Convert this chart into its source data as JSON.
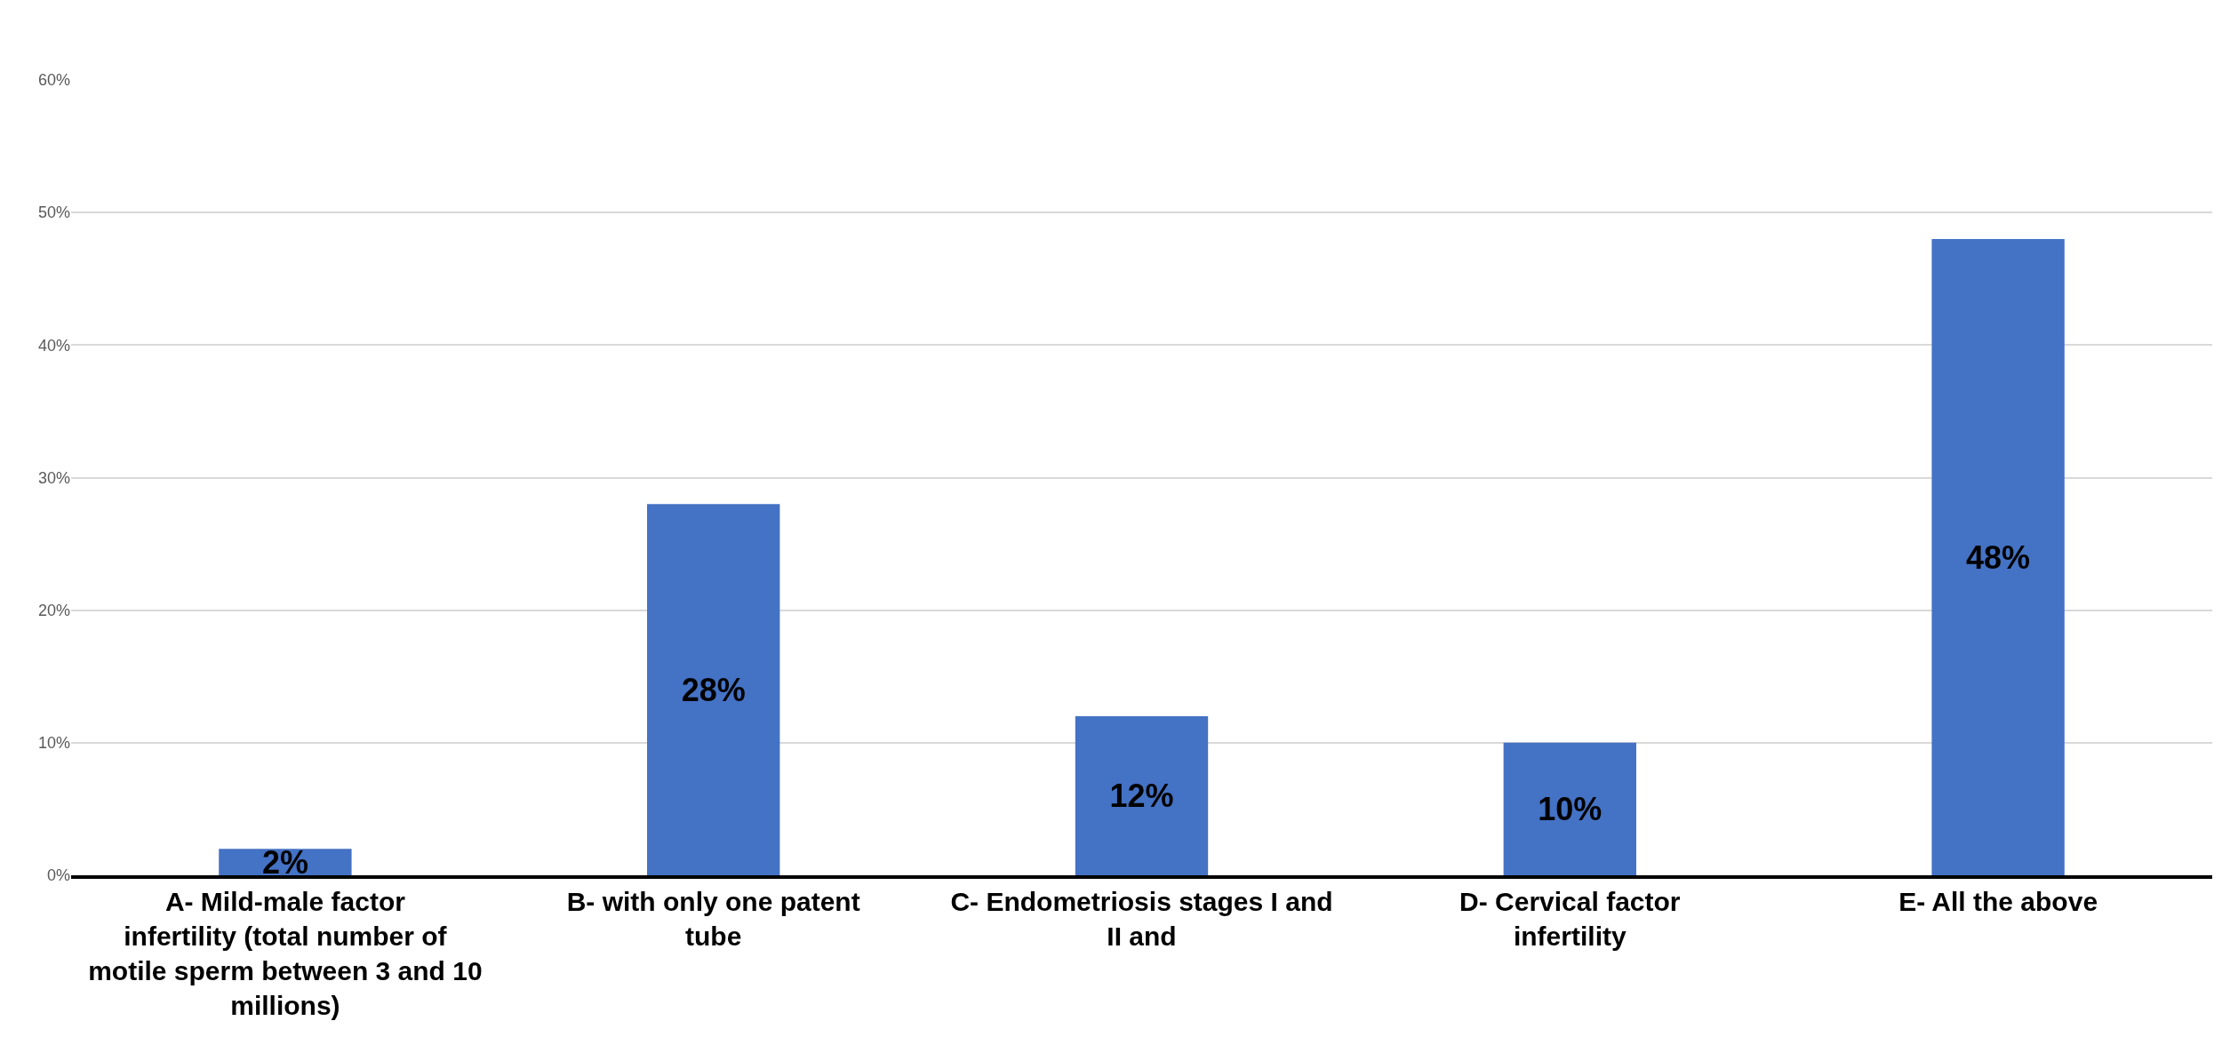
{
  "chart_data": {
    "type": "bar",
    "categories": [
      "A- Mild-male factor infertility (total number of motile sperm between 3 and 10 millions)",
      "B- with only one patent tube",
      "C- Endometriosis stages I and II and",
      "D- Cervical factor infertility",
      "E- All the above"
    ],
    "values": [
      2,
      28,
      12,
      10,
      48
    ],
    "color": "#4472c4",
    "ylim": [
      0,
      60
    ],
    "yticks": [
      {
        "value": 0,
        "label": "0%"
      },
      {
        "value": 10,
        "label": "10%"
      },
      {
        "value": 20,
        "label": "20%"
      },
      {
        "value": 30,
        "label": "30%"
      },
      {
        "value": 40,
        "label": "40%"
      },
      {
        "value": 50,
        "label": "50%"
      },
      {
        "value": 60,
        "label": "60%"
      }
    ],
    "value_labels": [
      "2%",
      "28%",
      "12%",
      "10%",
      "48%"
    ],
    "grid": "y"
  }
}
